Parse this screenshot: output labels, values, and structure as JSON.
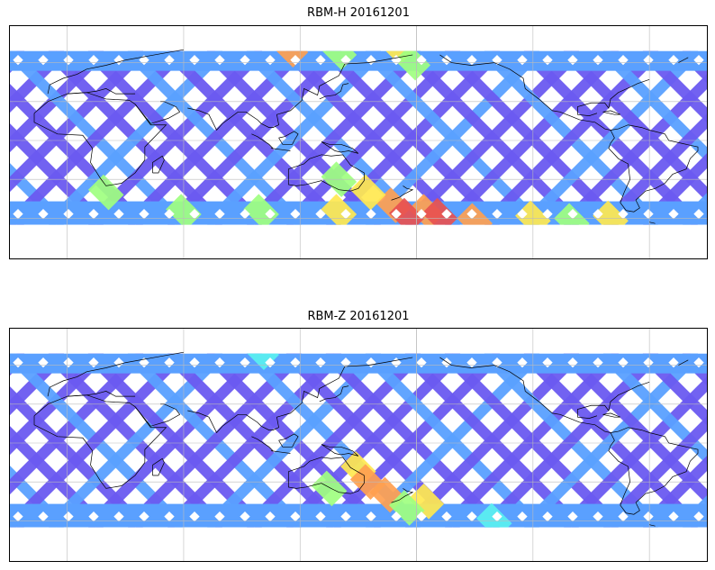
{
  "panels": [
    {
      "title": "RBM-H 20161201",
      "hotspots": [
        {
          "lon": -175,
          "lat": -55,
          "level": 0.85
        },
        {
          "lon": -168,
          "lat": -58,
          "level": 0.95
        },
        {
          "lon": -150,
          "lat": -62,
          "level": 0.8
        },
        {
          "lon": -120,
          "lat": -60,
          "level": 0.7
        },
        {
          "lon": -100,
          "lat": -62,
          "level": 0.55
        },
        {
          "lon": -80,
          "lat": -60,
          "level": 0.6
        },
        {
          "lon": 115,
          "lat": 70,
          "level": 0.75
        },
        {
          "lon": 140,
          "lat": 68,
          "level": 0.55
        },
        {
          "lon": 170,
          "lat": 72,
          "level": 0.7
        },
        {
          "lon": 178,
          "lat": 60,
          "level": 0.55
        },
        {
          "lon": 60,
          "lat": -55,
          "level": 0.55
        },
        {
          "lon": 100,
          "lat": -55,
          "level": 0.5
        },
        {
          "lon": 140,
          "lat": -55,
          "level": 0.6
        },
        {
          "lon": 168,
          "lat": -50,
          "level": 0.8
        },
        {
          "lon": 175,
          "lat": -58,
          "level": 0.95
        },
        {
          "lon": 155,
          "lat": -40,
          "level": 0.7
        },
        {
          "lon": 140,
          "lat": -30,
          "level": 0.5
        },
        {
          "lon": 20,
          "lat": -40,
          "level": 0.45
        }
      ]
    },
    {
      "title": "RBM-Z 20161201",
      "hotspots": [
        {
          "lon": -175,
          "lat": -45,
          "level": 0.6
        },
        {
          "lon": -140,
          "lat": -60,
          "level": 0.4
        },
        {
          "lon": 100,
          "lat": 70,
          "level": 0.35
        },
        {
          "lon": 150,
          "lat": -20,
          "level": 0.6
        },
        {
          "lon": 155,
          "lat": -30,
          "level": 0.85
        },
        {
          "lon": 165,
          "lat": -40,
          "level": 0.8
        },
        {
          "lon": 175,
          "lat": -50,
          "level": 0.55
        },
        {
          "lon": 135,
          "lat": -35,
          "level": 0.5
        }
      ]
    }
  ],
  "colors": {
    "colormap": [
      "#6a5af0",
      "#5aa0ff",
      "#5af0f0",
      "#a0ff80",
      "#ffe850",
      "#ffa050",
      "#e85050"
    ],
    "land": "#ffffff",
    "coast": "#000000",
    "grid": "#bbbbbb",
    "frame": "#000000"
  },
  "icons": {
    "coastlines": "coastline-map-icon"
  }
}
